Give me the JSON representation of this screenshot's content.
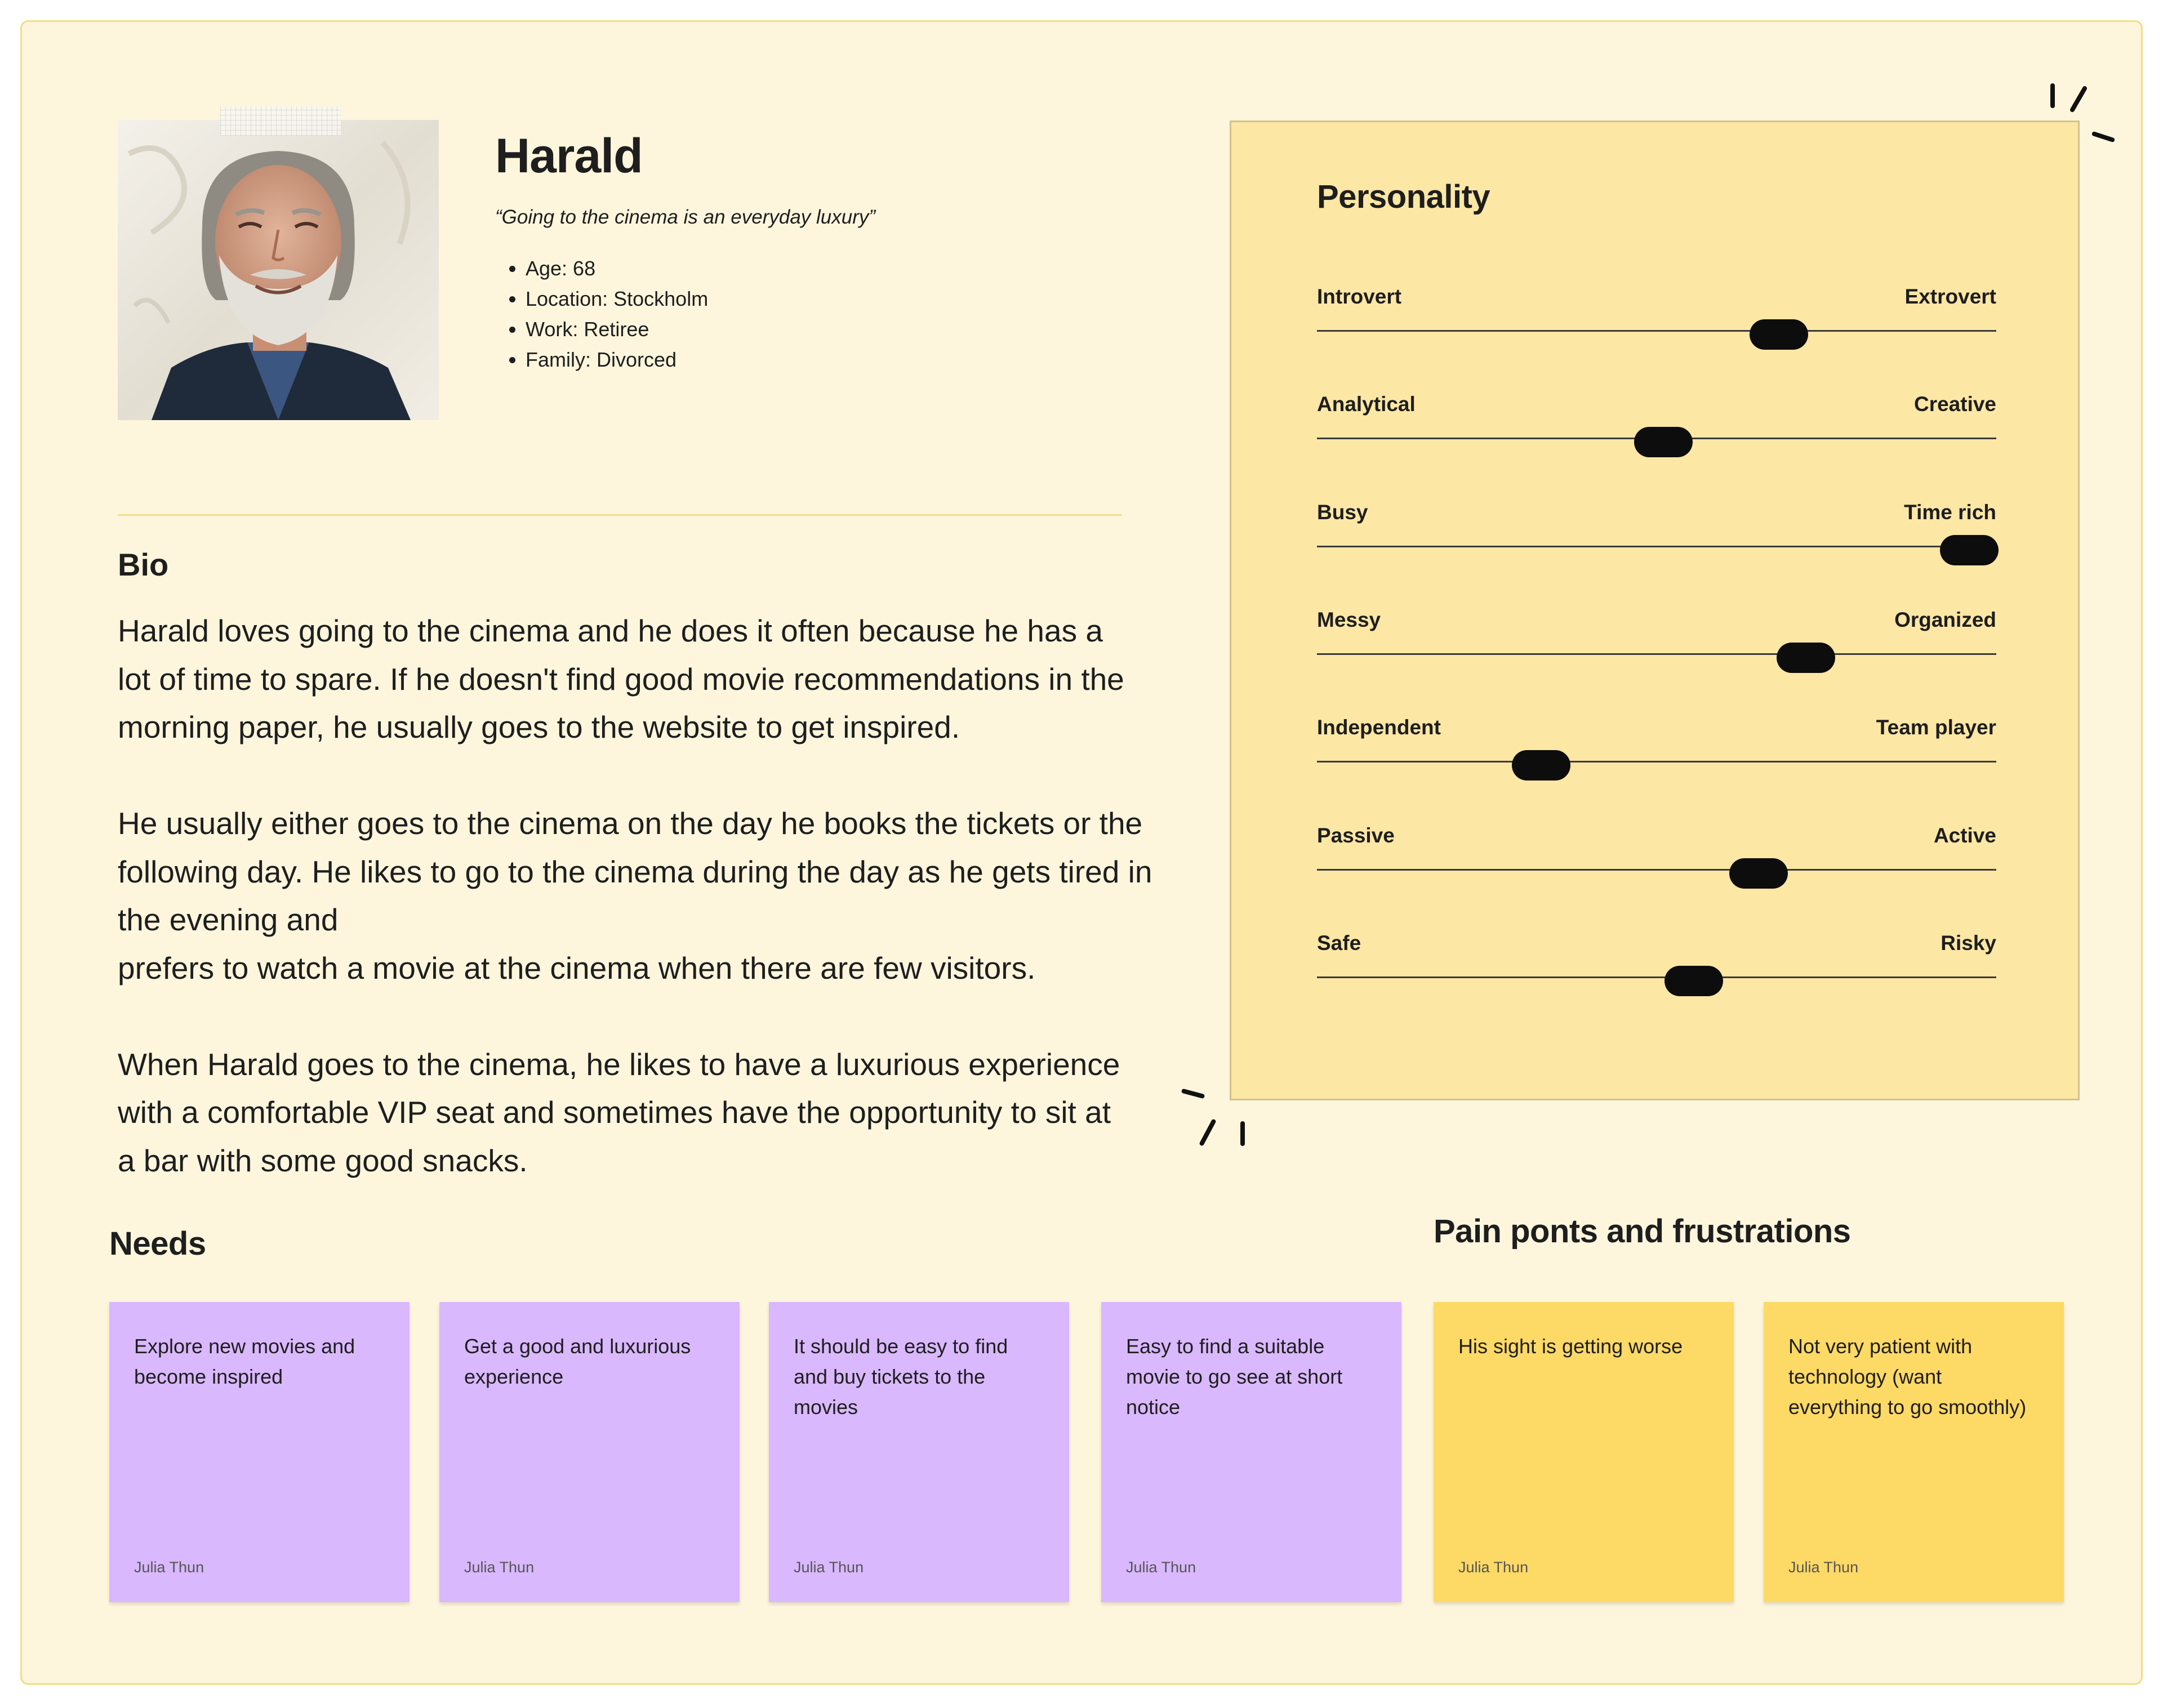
{
  "persona": {
    "name": "Harald",
    "quote": "“Going to the cinema is an everyday luxury”",
    "facts": [
      "Age: 68",
      "Location:  Stockholm",
      "Work: Retiree",
      "Family: Divorced"
    ]
  },
  "bio": {
    "title": "Bio",
    "paragraphs": [
      "Harald loves going to the cinema and he does it often because he has a lot of time to spare. If he doesn't find good movie recommendations in the morning paper, he usually goes to the website to get inspired.",
      "He usually either goes to the cinema on the day he books the tickets or the following day. He likes to go to the cinema during the day as he gets tired in the evening and",
      "prefers to watch a movie at the cinema when there are few visitors.",
      "When Harald goes to the cinema, he likes to have a luxurious experience with a comfortable VIP seat and sometimes have the opportunity to sit at a bar with some good snacks."
    ]
  },
  "personality": {
    "title": "Personality",
    "traits": [
      {
        "left": "Introvert",
        "right": "Extrovert",
        "level": 0.68
      },
      {
        "left": "Analytical",
        "right": "Creative",
        "level": 0.51
      },
      {
        "left": "Busy",
        "right": "Time rich",
        "level": 0.96
      },
      {
        "left": "Messy",
        "right": "Organized",
        "level": 0.72
      },
      {
        "left": "Independent",
        "right": "Team player",
        "level": 0.33
      },
      {
        "left": "Passive",
        "right": "Active",
        "level": 0.65
      },
      {
        "left": "Safe",
        "right": "Risky",
        "level": 0.555
      }
    ]
  },
  "needs": {
    "title": "Needs",
    "notes": [
      {
        "text": "Explore new movies and become inspired",
        "author": "Julia Thun"
      },
      {
        "text": "Get a good and luxurious experience",
        "author": "Julia Thun"
      },
      {
        "text": "It should be easy to find and buy tickets to the movies",
        "author": "Julia Thun"
      },
      {
        "text": "Easy to find a suitable movie to go see at short notice",
        "author": "Julia Thun"
      }
    ]
  },
  "pains": {
    "title": "Pain ponts and frustrations",
    "notes": [
      {
        "text": "His sight is getting worse",
        "author": "Julia Thun"
      },
      {
        "text": "Not very patient with technology (want everything to go smoothly)",
        "author": "Julia Thun"
      }
    ]
  },
  "colors": {
    "board": "#fdf6dd",
    "personality_panel": "#fde7a5",
    "need_note": "#d9b8fd",
    "pain_note": "#fdd966"
  }
}
